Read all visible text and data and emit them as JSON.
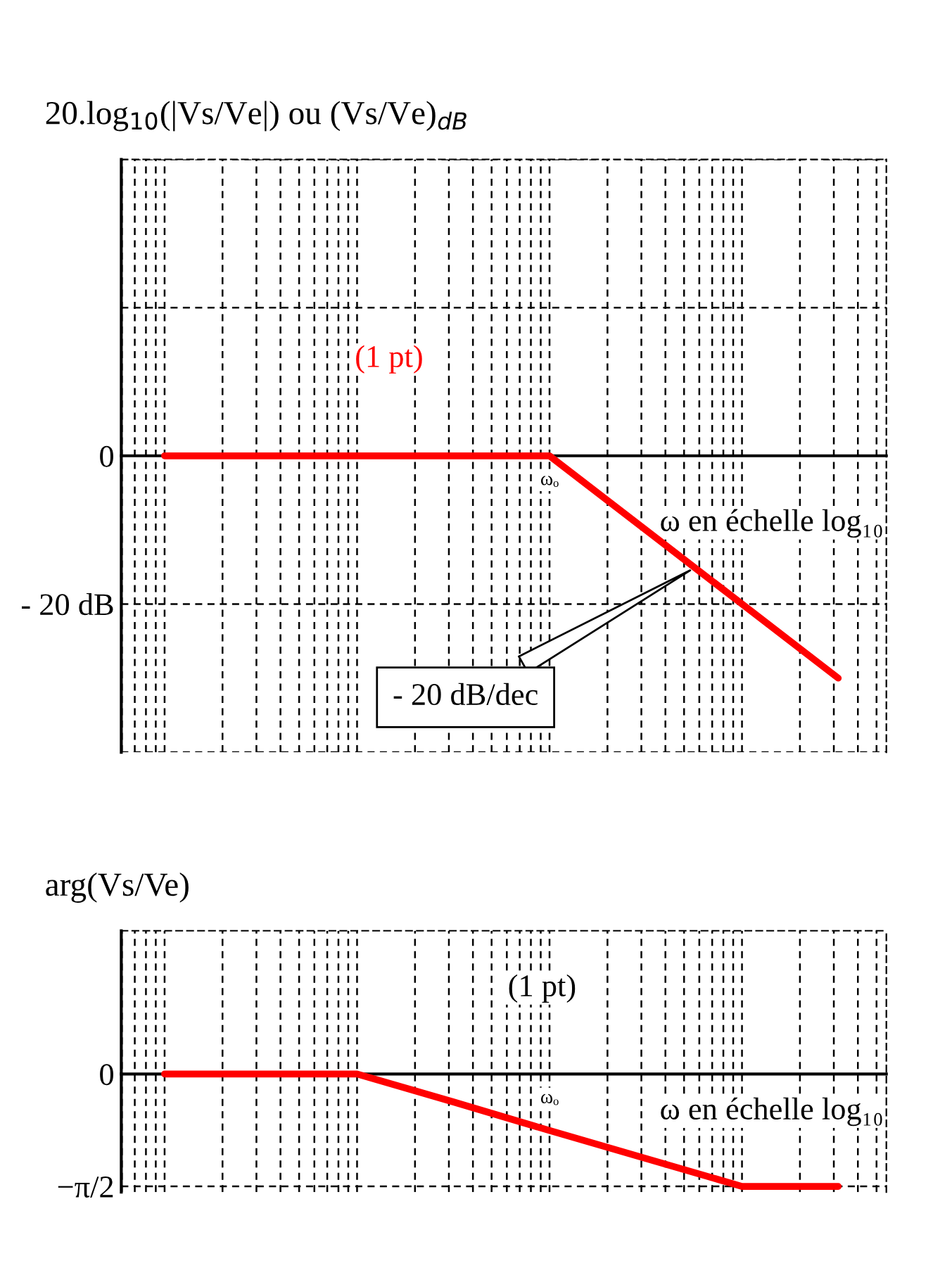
{
  "chart_data": [
    {
      "type": "line",
      "title": "20.log$_{10}$(|Vs/Ve|) ou (Vs/Ve)$_{dB}$",
      "xlabel": "ω en échelle log₁₀",
      "categories": [
        null,
        null,
        null,
        null,
        "ωₒ",
        null,
        null,
        null
      ],
      "ylim": [
        -40,
        40
      ],
      "yticks": [
        {
          "value": 40,
          "label": null
        },
        {
          "value": 20,
          "label": null
        },
        {
          "value": 0,
          "label": "0"
        },
        {
          "value": -20,
          "label": "- 20 dB"
        },
        {
          "value": -40,
          "label": null
        }
      ],
      "grid": true,
      "series": [
        {
          "color": "#ff0000",
          "values": [
            0,
            0,
            0,
            0,
            0,
            -10,
            -20,
            -30
          ]
        }
      ],
      "annotations": [
        "(1 pt)",
        "- 20 dB/dec"
      ]
    },
    {
      "type": "line",
      "title": "arg(Vs/Ve)",
      "xlabel": "ω en échelle log₁₀",
      "categories": [
        null,
        null,
        null,
        null,
        "ωₒ",
        null,
        null,
        null
      ],
      "ylim": [
        -1.65,
        2.0
      ],
      "yticks": [
        {
          "value": 0,
          "label": "0"
        },
        {
          "value": -1.57,
          "label": "−π/2"
        }
      ],
      "grid": true,
      "series": [
        {
          "color": "#ff0000",
          "values": [
            0,
            0,
            0,
            -0.39,
            -0.79,
            -1.18,
            -1.57,
            -1.57
          ]
        }
      ],
      "annotations": [
        "(1 pt)"
      ]
    }
  ]
}
